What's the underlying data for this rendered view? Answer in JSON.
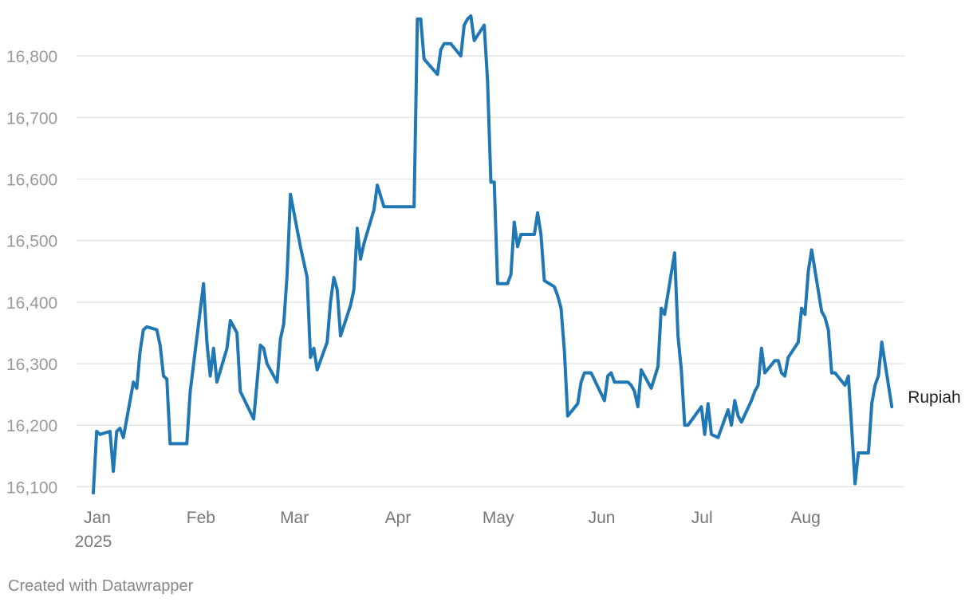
{
  "chart_data": {
    "type": "line",
    "title": "",
    "xlabel": "",
    "ylabel": "",
    "ylim": [
      16085,
      16865
    ],
    "y_ticks": [
      16100,
      16200,
      16300,
      16400,
      16500,
      16600,
      16700,
      16800
    ],
    "y_tick_labels": [
      "16,100",
      "16,200",
      "16,300",
      "16,400",
      "16,500",
      "16,600",
      "16,700",
      "16,800"
    ],
    "x_range": [
      "2025-01-01",
      "2025-08-27"
    ],
    "x_ticks": [
      "2025-01-01",
      "2025-02-01",
      "2025-03-01",
      "2025-04-01",
      "2025-05-01",
      "2025-06-01",
      "2025-07-01",
      "2025-08-01"
    ],
    "x_tick_labels": [
      "Jan",
      "Feb",
      "Mar",
      "Apr",
      "May",
      "Jun",
      "Jul",
      "Aug"
    ],
    "x_year_label": "2025",
    "grid": true,
    "series": [
      {
        "name": "Rupiah",
        "color": "#1f77b4",
        "points": [
          [
            "2025-01-01",
            16090
          ],
          [
            "2025-01-02",
            16190
          ],
          [
            "2025-01-03",
            16185
          ],
          [
            "2025-01-06",
            16190
          ],
          [
            "2025-01-07",
            16125
          ],
          [
            "2025-01-08",
            16190
          ],
          [
            "2025-01-09",
            16195
          ],
          [
            "2025-01-10",
            16180
          ],
          [
            "2025-01-13",
            16270
          ],
          [
            "2025-01-14",
            16260
          ],
          [
            "2025-01-15",
            16320
          ],
          [
            "2025-01-16",
            16355
          ],
          [
            "2025-01-17",
            16360
          ],
          [
            "2025-01-20",
            16355
          ],
          [
            "2025-01-21",
            16330
          ],
          [
            "2025-01-22",
            16280
          ],
          [
            "2025-01-23",
            16275
          ],
          [
            "2025-01-24",
            16170
          ],
          [
            "2025-01-29",
            16170
          ],
          [
            "2025-01-30",
            16255
          ],
          [
            "2025-02-03",
            16430
          ],
          [
            "2025-02-04",
            16335
          ],
          [
            "2025-02-05",
            16280
          ],
          [
            "2025-02-06",
            16325
          ],
          [
            "2025-02-07",
            16270
          ],
          [
            "2025-02-10",
            16325
          ],
          [
            "2025-02-11",
            16370
          ],
          [
            "2025-02-13",
            16350
          ],
          [
            "2025-02-14",
            16255
          ],
          [
            "2025-02-18",
            16210
          ],
          [
            "2025-02-20",
            16330
          ],
          [
            "2025-02-21",
            16325
          ],
          [
            "2025-02-22",
            16300
          ],
          [
            "2025-02-25",
            16270
          ],
          [
            "2025-02-26",
            16340
          ],
          [
            "2025-02-27",
            16365
          ],
          [
            "2025-02-28",
            16445
          ],
          [
            "2025-03-01",
            16575
          ],
          [
            "2025-03-04",
            16490
          ],
          [
            "2025-03-06",
            16440
          ],
          [
            "2025-03-07",
            16310
          ],
          [
            "2025-03-08",
            16325
          ],
          [
            "2025-03-09",
            16290
          ],
          [
            "2025-03-12",
            16335
          ],
          [
            "2025-03-13",
            16400
          ],
          [
            "2025-03-14",
            16440
          ],
          [
            "2025-03-15",
            16420
          ],
          [
            "2025-03-16",
            16345
          ],
          [
            "2025-03-19",
            16395
          ],
          [
            "2025-03-20",
            16420
          ],
          [
            "2025-03-21",
            16520
          ],
          [
            "2025-03-22",
            16470
          ],
          [
            "2025-03-23",
            16495
          ],
          [
            "2025-03-26",
            16550
          ],
          [
            "2025-03-27",
            16590
          ],
          [
            "2025-03-29",
            16555
          ],
          [
            "2025-04-07",
            16555
          ],
          [
            "2025-04-08",
            16860
          ],
          [
            "2025-04-09",
            16860
          ],
          [
            "2025-04-10",
            16795
          ],
          [
            "2025-04-14",
            16770
          ],
          [
            "2025-04-15",
            16810
          ],
          [
            "2025-04-16",
            16820
          ],
          [
            "2025-04-18",
            16820
          ],
          [
            "2025-04-21",
            16800
          ],
          [
            "2025-04-22",
            16850
          ],
          [
            "2025-04-23",
            16860
          ],
          [
            "2025-04-24",
            16865
          ],
          [
            "2025-04-25",
            16825
          ],
          [
            "2025-04-28",
            16850
          ],
          [
            "2025-04-29",
            16760
          ],
          [
            "2025-04-30",
            16595
          ],
          [
            "2025-05-01",
            16595
          ],
          [
            "2025-05-02",
            16430
          ],
          [
            "2025-05-05",
            16430
          ],
          [
            "2025-05-06",
            16445
          ],
          [
            "2025-05-07",
            16530
          ],
          [
            "2025-05-08",
            16490
          ],
          [
            "2025-05-09",
            16510
          ],
          [
            "2025-05-13",
            16510
          ],
          [
            "2025-05-14",
            16545
          ],
          [
            "2025-05-15",
            16510
          ],
          [
            "2025-05-16",
            16435
          ],
          [
            "2025-05-19",
            16425
          ],
          [
            "2025-05-20",
            16410
          ],
          [
            "2025-05-21",
            16390
          ],
          [
            "2025-05-22",
            16320
          ],
          [
            "2025-05-23",
            16215
          ],
          [
            "2025-05-26",
            16235
          ],
          [
            "2025-05-27",
            16270
          ],
          [
            "2025-05-28",
            16285
          ],
          [
            "2025-05-30",
            16285
          ],
          [
            "2025-06-03",
            16240
          ],
          [
            "2025-06-04",
            16280
          ],
          [
            "2025-06-05",
            16285
          ],
          [
            "2025-06-06",
            16270
          ],
          [
            "2025-06-10",
            16270
          ],
          [
            "2025-06-11",
            16265
          ],
          [
            "2025-06-12",
            16255
          ],
          [
            "2025-06-13",
            16230
          ],
          [
            "2025-06-14",
            16290
          ],
          [
            "2025-06-17",
            16260
          ],
          [
            "2025-06-19",
            16295
          ],
          [
            "2025-06-20",
            16390
          ],
          [
            "2025-06-21",
            16380
          ],
          [
            "2025-06-24",
            16480
          ],
          [
            "2025-06-25",
            16345
          ],
          [
            "2025-06-26",
            16290
          ],
          [
            "2025-06-27",
            16200
          ],
          [
            "2025-06-28",
            16200
          ],
          [
            "2025-07-02",
            16230
          ],
          [
            "2025-07-03",
            16185
          ],
          [
            "2025-07-04",
            16235
          ],
          [
            "2025-07-05",
            16185
          ],
          [
            "2025-07-07",
            16180
          ],
          [
            "2025-07-10",
            16225
          ],
          [
            "2025-07-11",
            16200
          ],
          [
            "2025-07-12",
            16240
          ],
          [
            "2025-07-13",
            16215
          ],
          [
            "2025-07-14",
            16205
          ],
          [
            "2025-07-17",
            16240
          ],
          [
            "2025-07-18",
            16255
          ],
          [
            "2025-07-19",
            16265
          ],
          [
            "2025-07-20",
            16325
          ],
          [
            "2025-07-21",
            16285
          ],
          [
            "2025-07-24",
            16305
          ],
          [
            "2025-07-25",
            16305
          ],
          [
            "2025-07-26",
            16285
          ],
          [
            "2025-07-27",
            16280
          ],
          [
            "2025-07-28",
            16310
          ],
          [
            "2025-07-31",
            16335
          ],
          [
            "2025-08-01",
            16390
          ],
          [
            "2025-08-02",
            16380
          ],
          [
            "2025-08-03",
            16450
          ],
          [
            "2025-08-04",
            16485
          ],
          [
            "2025-08-07",
            16385
          ],
          [
            "2025-08-08",
            16375
          ],
          [
            "2025-08-09",
            16355
          ],
          [
            "2025-08-10",
            16285
          ],
          [
            "2025-08-11",
            16285
          ],
          [
            "2025-08-14",
            16265
          ],
          [
            "2025-08-15",
            16280
          ],
          [
            "2025-08-16",
            16195
          ],
          [
            "2025-08-17",
            16105
          ],
          [
            "2025-08-18",
            16155
          ],
          [
            "2025-08-21",
            16155
          ],
          [
            "2025-08-22",
            16235
          ],
          [
            "2025-08-23",
            16265
          ],
          [
            "2025-08-24",
            16280
          ],
          [
            "2025-08-25",
            16335
          ],
          [
            "2025-08-28",
            16230
          ]
        ]
      }
    ]
  },
  "credit": "Created with Datawrapper"
}
